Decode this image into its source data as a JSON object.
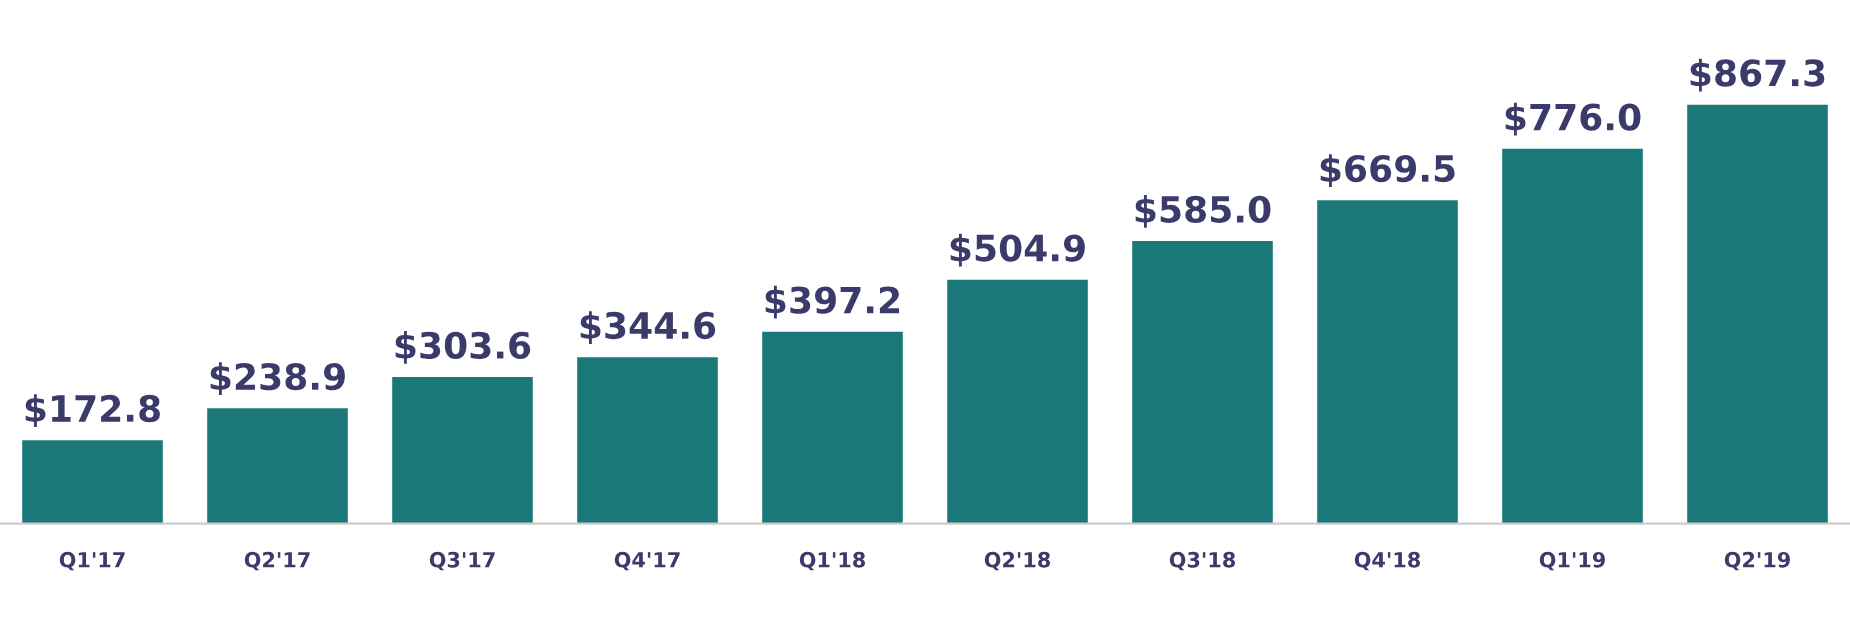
{
  "chart_data": {
    "type": "bar",
    "categories": [
      "Q1'17",
      "Q2'17",
      "Q3'17",
      "Q4'17",
      "Q1'18",
      "Q2'18",
      "Q3'18",
      "Q4'18",
      "Q1'19",
      "Q2'19"
    ],
    "values": [
      172.8,
      238.9,
      303.6,
      344.6,
      397.2,
      504.9,
      585.0,
      669.5,
      776.0,
      867.3
    ],
    "value_labels": [
      "$172.8",
      "$238.9",
      "$303.6",
      "$344.6",
      "$397.2",
      "$504.9",
      "$585.0",
      "$669.5",
      "$776.0",
      "$867.3"
    ],
    "color": "#1a7879",
    "grid": false,
    "legend": false
  }
}
